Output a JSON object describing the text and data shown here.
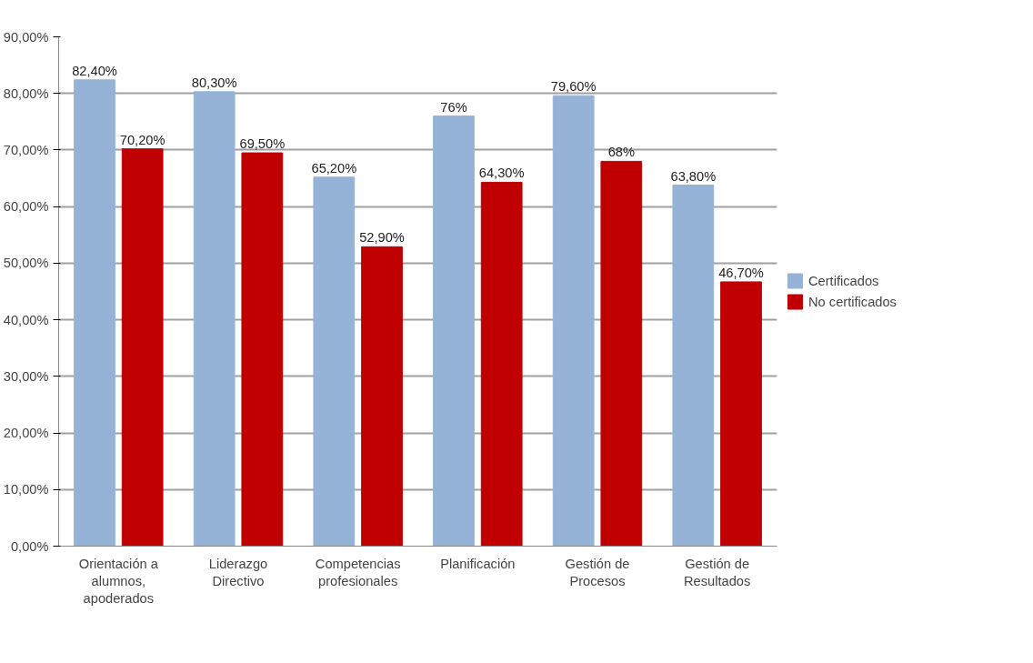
{
  "chart_data": {
    "type": "bar",
    "categories": [
      "Orientación a alumnos, apoderados",
      "Liderazgo Directivo",
      "Competencias profesionales",
      "Planificación",
      "Gestión de Procesos",
      "Gestión de Resultados"
    ],
    "series": [
      {
        "name": "Certificados",
        "color": "#95b3d7",
        "values": [
          82.4,
          80.3,
          65.2,
          76,
          79.6,
          63.8
        ],
        "value_labels": [
          "82,40%",
          "80,30%",
          "65,20%",
          "76%",
          "79,60%",
          "63,80%"
        ]
      },
      {
        "name": "No certificados",
        "color": "#c00000",
        "values": [
          70.2,
          69.5,
          52.9,
          64.3,
          68,
          46.7
        ],
        "value_labels": [
          "70,20%",
          "69,50%",
          "52,90%",
          "64,30%",
          "68%",
          "46,70%"
        ]
      }
    ],
    "ylim": [
      0,
      90
    ],
    "yticks": [
      {
        "value": 0,
        "label": "0,00%"
      },
      {
        "value": 10,
        "label": "10,00%"
      },
      {
        "value": 20,
        "label": "20,00%"
      },
      {
        "value": 30,
        "label": "30,00%"
      },
      {
        "value": 40,
        "label": "40,00%"
      },
      {
        "value": 50,
        "label": "50,00%"
      },
      {
        "value": 60,
        "label": "60,00%"
      },
      {
        "value": 70,
        "label": "70,00%"
      },
      {
        "value": 80,
        "label": "80,00%"
      },
      {
        "value": 90,
        "label": "90,00%"
      }
    ],
    "grid": "y",
    "legend": "right"
  }
}
